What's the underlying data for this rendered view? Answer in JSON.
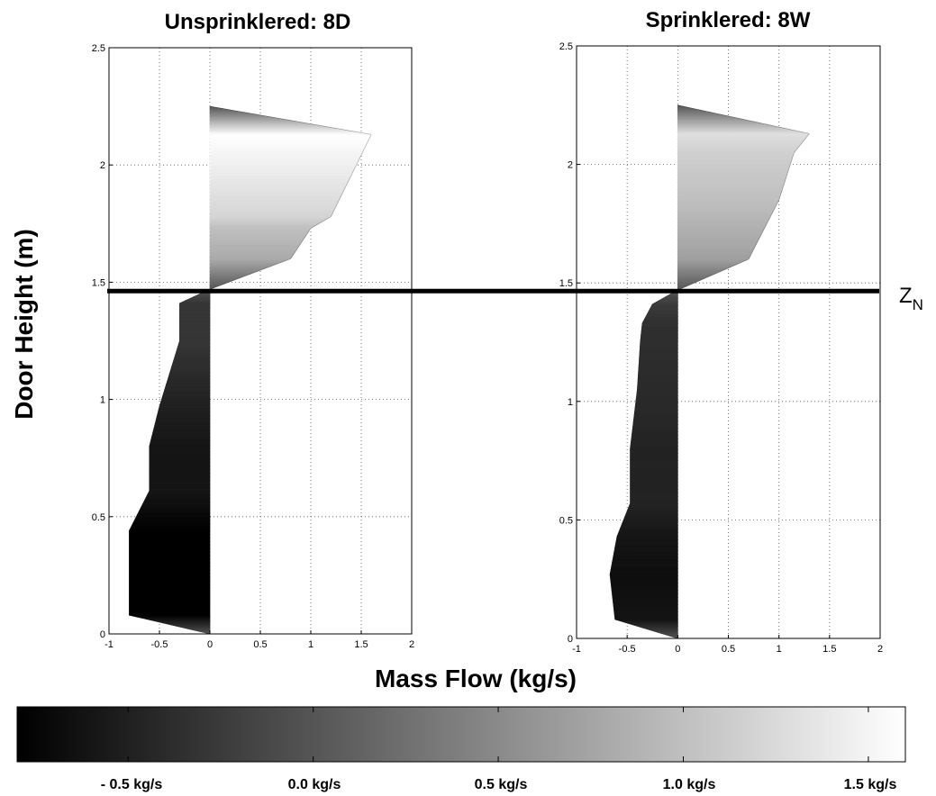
{
  "figure": {
    "ylabel": "Door Height (m)",
    "xlabel": "Mass Flow (kg/s)",
    "neutral_plane_label": "Z",
    "neutral_plane_subscript": "N",
    "neutral_plane_height": 1.47
  },
  "chart_data": [
    {
      "type": "area",
      "title": "Unsprinklered: 8D",
      "x_ticks": [
        "-1",
        "-0.5",
        "0",
        "0.5",
        "1",
        "1.5",
        "2"
      ],
      "y_ticks": [
        "0",
        "0.5",
        "1",
        "1.5",
        "2",
        "2.5"
      ],
      "xlim": [
        -1,
        2
      ],
      "ylim": [
        0,
        2.5
      ],
      "grid": true,
      "profile": [
        {
          "x": 0,
          "y": 0
        },
        {
          "x": -0.8,
          "y": 0.08
        },
        {
          "x": -0.8,
          "y": 0.44
        },
        {
          "x": -0.6,
          "y": 0.61
        },
        {
          "x": -0.6,
          "y": 0.8
        },
        {
          "x": -0.5,
          "y": 0.97
        },
        {
          "x": -0.3,
          "y": 1.25
        },
        {
          "x": -0.3,
          "y": 1.41
        },
        {
          "x": 0,
          "y": 1.47
        },
        {
          "x": 0.8,
          "y": 1.6
        },
        {
          "x": 1.0,
          "y": 1.73
        },
        {
          "x": 1.2,
          "y": 1.78
        },
        {
          "x": 1.6,
          "y": 2.13
        },
        {
          "x": 0,
          "y": 2.25
        }
      ]
    },
    {
      "type": "area",
      "title": "Sprinklered: 8W",
      "x_ticks": [
        "-1",
        "-0.5",
        "0",
        "0.5",
        "1",
        "1.5",
        "2"
      ],
      "y_ticks": [
        "0",
        "0.5",
        "1",
        "1.5",
        "2",
        "2.5"
      ],
      "xlim": [
        -1,
        2
      ],
      "ylim": [
        0,
        2.5
      ],
      "grid": true,
      "profile": [
        {
          "x": 0,
          "y": 0
        },
        {
          "x": -0.62,
          "y": 0.08
        },
        {
          "x": -0.67,
          "y": 0.27
        },
        {
          "x": -0.6,
          "y": 0.43
        },
        {
          "x": -0.47,
          "y": 0.57
        },
        {
          "x": -0.47,
          "y": 0.8
        },
        {
          "x": -0.4,
          "y": 1.05
        },
        {
          "x": -0.37,
          "y": 1.25
        },
        {
          "x": -0.35,
          "y": 1.33
        },
        {
          "x": -0.25,
          "y": 1.41
        },
        {
          "x": 0,
          "y": 1.47
        },
        {
          "x": 0.7,
          "y": 1.6
        },
        {
          "x": 1.0,
          "y": 1.85
        },
        {
          "x": 1.15,
          "y": 2.05
        },
        {
          "x": 1.3,
          "y": 2.13
        },
        {
          "x": 0,
          "y": 2.25
        }
      ]
    }
  ],
  "colorbar": {
    "min": -0.8,
    "max": 1.6,
    "color_low": "#000000",
    "color_high": "#ffffff",
    "labels": [
      "- 0.5 kg/s",
      "0.0 kg/s",
      "0.5 kg/s",
      "1.0 kg/s",
      "1.5 kg/s"
    ]
  }
}
